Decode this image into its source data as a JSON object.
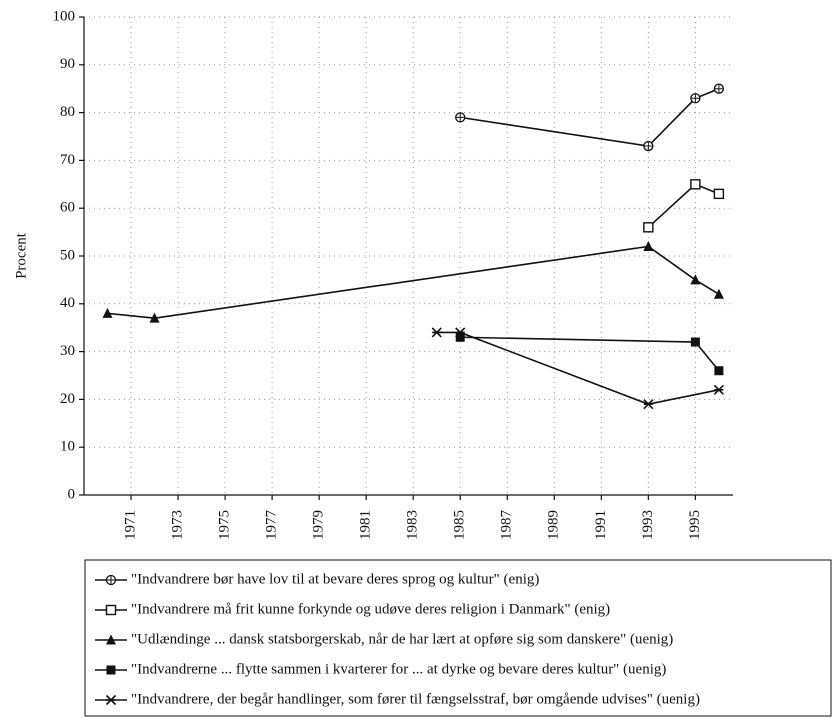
{
  "chart_data": {
    "type": "line",
    "y_label": "Procent",
    "xlim": [
      1969,
      1996.6
    ],
    "ylim": [
      0,
      100
    ],
    "xticks": [
      1971,
      1973,
      1975,
      1977,
      1979,
      1981,
      1983,
      1985,
      1987,
      1989,
      1991,
      1993,
      1995
    ],
    "yticks": [
      0,
      10,
      20,
      30,
      40,
      50,
      60,
      70,
      80,
      90,
      100
    ],
    "grid": true,
    "series": [
      {
        "name": "\"Indvandrere bør have lov til at bevare deres sprog og kultur\" (enig)",
        "color": "#111111",
        "marker": "open-star",
        "x": [
          1985,
          1993,
          1995,
          1996
        ],
        "values": [
          79,
          73,
          83,
          85
        ]
      },
      {
        "name": "\"Indvandrere må frit kunne forkynde og udøve deres religion i Danmark\" (enig)",
        "color": "#111111",
        "marker": "open-square",
        "x": [
          1993,
          1995,
          1996
        ],
        "values": [
          56,
          65,
          63
        ]
      },
      {
        "name": "\"Udlændinge ... dansk statsborgerskab, når de har lært at opføre sig som danskere\" (uenig)",
        "color": "#111111",
        "marker": "triangle",
        "x": [
          1970,
          1972,
          1993,
          1995,
          1996
        ],
        "values": [
          38,
          37,
          52,
          45,
          42
        ]
      },
      {
        "name": "\"Indvandrerne ... flytte sammen i kvarterer for ... at dyrke og bevare deres kultur\" (uenig)",
        "color": "#111111",
        "marker": "square",
        "x": [
          1985,
          1995,
          1996
        ],
        "values": [
          33,
          32,
          26
        ]
      },
      {
        "name": "\"Indvandrere, der begår handlinger, som fører til fængselsstraf, bør omgående udvises\" (uenig)",
        "color": "#111111",
        "marker": "asterisk",
        "x": [
          1984,
          1985,
          1993,
          1996
        ],
        "values": [
          34,
          34,
          19,
          22
        ]
      }
    ]
  }
}
